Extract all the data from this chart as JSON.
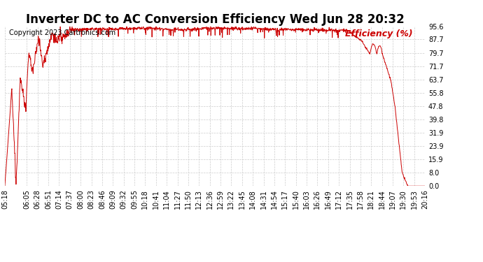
{
  "title": "Inverter DC to AC Conversion Efficiency Wed Jun 28 20:32",
  "copyright_text": "Copyright 2023 Cartronics.com",
  "legend_label": "Efficiency (%)",
  "yticks": [
    0.0,
    8.0,
    15.9,
    23.9,
    31.9,
    39.8,
    47.8,
    55.8,
    63.7,
    71.7,
    79.7,
    87.7,
    95.6
  ],
  "ymin": 0.0,
  "ymax": 95.6,
  "line_color": "#cc0000",
  "grid_color": "#cccccc",
  "background_color": "#ffffff",
  "title_fontsize": 12,
  "copyright_fontsize": 7,
  "legend_fontsize": 9,
  "tick_fontsize": 7,
  "xtick_labels": [
    "05:18",
    "06:05",
    "06:28",
    "06:51",
    "07:14",
    "07:37",
    "08:00",
    "08:23",
    "08:46",
    "09:09",
    "09:32",
    "09:55",
    "10:18",
    "10:41",
    "11:04",
    "11:27",
    "11:50",
    "12:13",
    "12:36",
    "12:59",
    "13:22",
    "13:45",
    "14:08",
    "14:31",
    "14:54",
    "15:17",
    "15:40",
    "16:03",
    "16:26",
    "16:49",
    "17:12",
    "17:35",
    "17:58",
    "18:21",
    "18:44",
    "19:07",
    "19:30",
    "19:53",
    "20:16"
  ]
}
